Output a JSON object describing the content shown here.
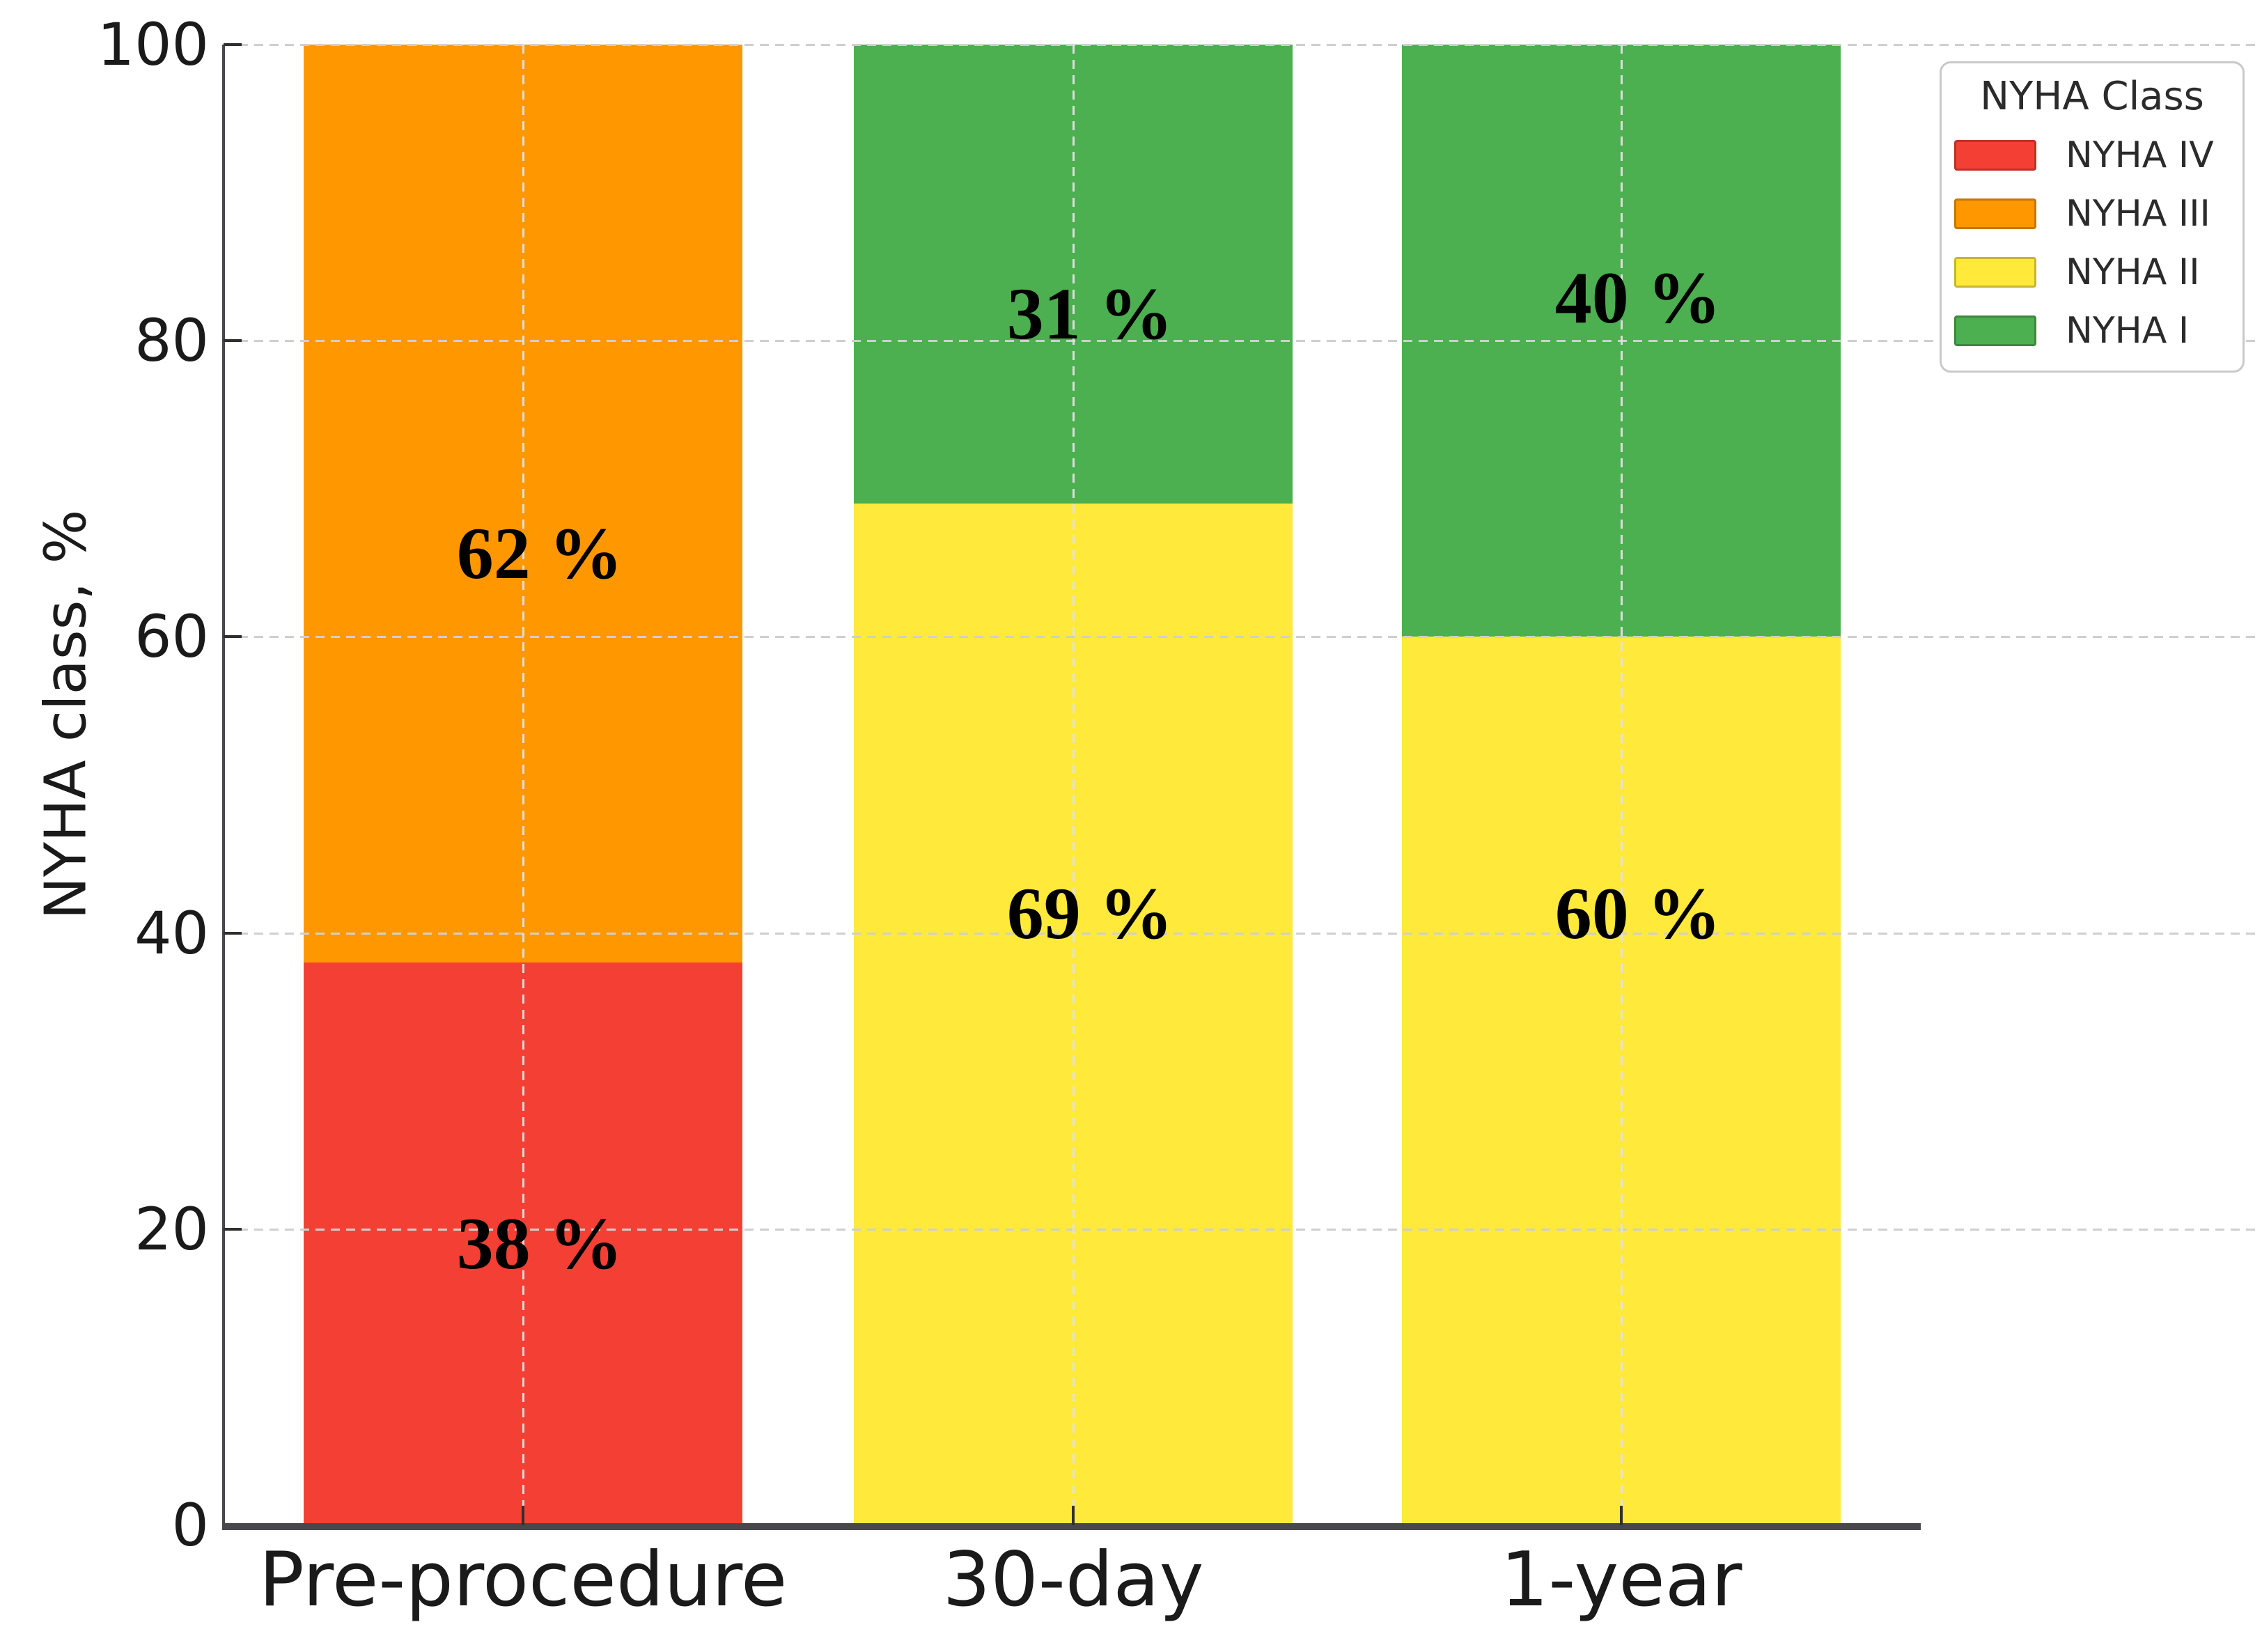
{
  "figure": {
    "y_axis_title": "NYHA class, %"
  },
  "legend": {
    "title": "NYHA Class",
    "items": [
      {
        "label": "NYHA IV",
        "color": "#f44034"
      },
      {
        "label": "NYHA III",
        "color": "#ff9800"
      },
      {
        "label": "NYHA II",
        "color": "#ffe93b"
      },
      {
        "label": "NYHA I",
        "color": "#4caf50"
      }
    ]
  },
  "chart_data": {
    "type": "bar",
    "stacked": true,
    "title": "",
    "xlabel": "",
    "ylabel": "NYHA class, %",
    "categories": [
      "Pre-procedure",
      "30-day",
      "1-year"
    ],
    "series": [
      {
        "name": "NYHA IV",
        "color": "#f44034",
        "values": [
          38,
          0,
          0
        ]
      },
      {
        "name": "NYHA III",
        "color": "#ff9800",
        "values": [
          62,
          0,
          0
        ]
      },
      {
        "name": "NYHA II",
        "color": "#ffe93b",
        "values": [
          0,
          69,
          60
        ]
      },
      {
        "name": "NYHA I",
        "color": "#4caf50",
        "values": [
          0,
          31,
          40
        ]
      }
    ],
    "bar_labels": [
      {
        "bar": 0,
        "text": "38 %",
        "y_pct": 19.0
      },
      {
        "bar": 0,
        "text": "62 %",
        "y_pct": 65.6
      },
      {
        "bar": 1,
        "text": "69 %",
        "y_pct": 41.3
      },
      {
        "bar": 1,
        "text": "31 %",
        "y_pct": 81.8
      },
      {
        "bar": 2,
        "text": "60 %",
        "y_pct": 41.3
      },
      {
        "bar": 2,
        "text": "40 %",
        "y_pct": 82.9
      }
    ],
    "ylim": [
      0,
      100
    ],
    "yticks": [
      0,
      20,
      40,
      60,
      80,
      100
    ],
    "grid": "dashed",
    "grid_color": "#cfcfcf",
    "legend_position": "upper right",
    "legend_title": "NYHA Class",
    "axis_color": "#47474c"
  }
}
